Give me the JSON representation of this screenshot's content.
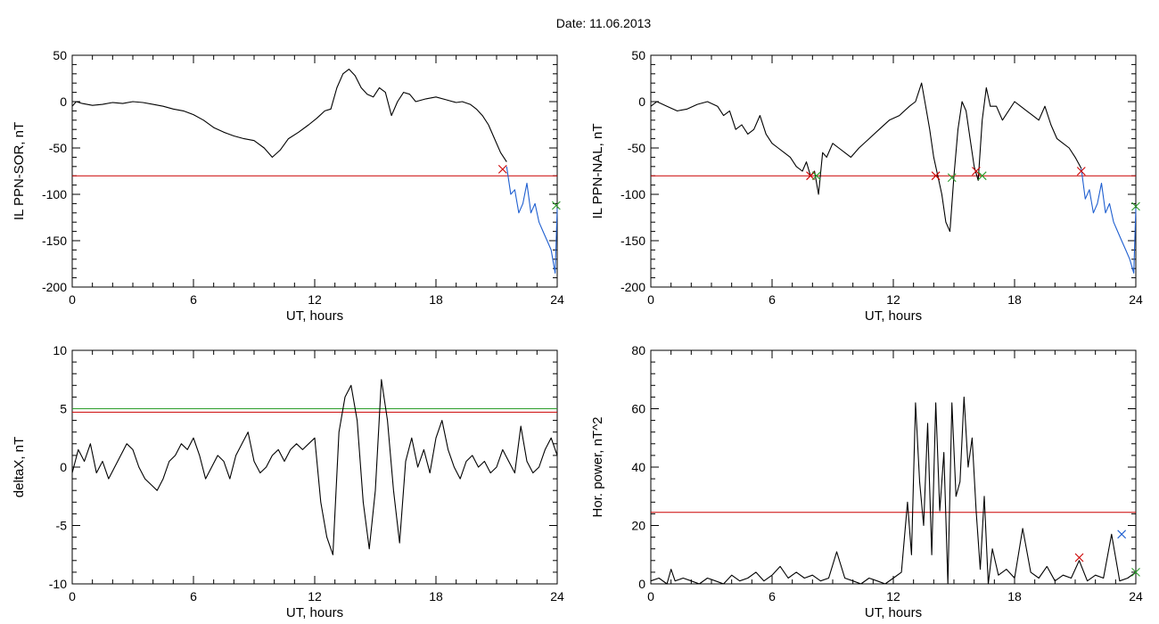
{
  "page": {
    "title": "Date:  11.06.2013"
  },
  "chart_data": [
    {
      "type": "line",
      "xlabel": "UT, hours",
      "ylabel": "IL PPN-SOR, nT",
      "xlim": [
        0,
        24
      ],
      "ylim": [
        -200,
        50
      ],
      "xticks": [
        0,
        6,
        12,
        18,
        24
      ],
      "yticks": [
        -200,
        -150,
        -100,
        -50,
        0,
        50
      ],
      "threshold": -80,
      "series": [
        {
          "color": "#000000",
          "x": [
            0,
            0.2,
            0.5,
            1,
            1.5,
            2,
            2.5,
            3,
            3.5,
            4,
            4.5,
            5,
            5.5,
            6,
            6.5,
            7,
            7.5,
            8,
            8.5,
            9,
            9.5,
            9.9,
            10.3,
            10.7,
            11.2,
            11.7,
            12.1,
            12.5,
            12.8,
            13.1,
            13.4,
            13.7,
            14,
            14.3,
            14.6,
            14.9,
            15.2,
            15.5,
            15.8,
            16.1,
            16.4,
            16.7,
            17,
            17.5,
            18,
            18.5,
            19,
            19.3,
            19.7,
            20,
            20.3,
            20.6,
            20.9,
            21.2,
            21.5
          ],
          "y": [
            -5,
            0,
            -2,
            -4,
            -3,
            -1,
            -2,
            0,
            -1,
            -3,
            -5,
            -8,
            -10,
            -14,
            -20,
            -28,
            -33,
            -37,
            -40,
            -42,
            -50,
            -60,
            -52,
            -40,
            -33,
            -25,
            -18,
            -10,
            -8,
            15,
            30,
            35,
            28,
            15,
            8,
            5,
            15,
            10,
            -15,
            0,
            10,
            8,
            0,
            3,
            5,
            2,
            -1,
            0,
            -3,
            -8,
            -15,
            -25,
            -40,
            -55,
            -65
          ]
        },
        {
          "color": "#1f5fd0",
          "x": [
            21.5,
            21.7,
            21.9,
            22.1,
            22.3,
            22.5,
            22.7,
            22.9,
            23.1,
            23.3,
            23.5,
            23.7,
            23.9,
            24
          ],
          "y": [
            -70,
            -100,
            -95,
            -120,
            -110,
            -88,
            -120,
            -110,
            -130,
            -140,
            -150,
            -160,
            -185,
            -115
          ]
        }
      ],
      "markers": [
        {
          "x": 21.3,
          "y": -73,
          "color": "#cc0000"
        },
        {
          "x": 23.95,
          "y": -112,
          "color": "#2a9d2a"
        }
      ]
    },
    {
      "type": "line",
      "xlabel": "UT, hours",
      "ylabel": "IL PPN-NAL, nT",
      "xlim": [
        0,
        24
      ],
      "ylim": [
        -200,
        50
      ],
      "xticks": [
        0,
        6,
        12,
        18,
        24
      ],
      "yticks": [
        -200,
        -150,
        -100,
        -50,
        0,
        50
      ],
      "threshold": -80,
      "series": [
        {
          "color": "#000000",
          "x": [
            0,
            0.3,
            0.8,
            1.3,
            1.8,
            2.3,
            2.8,
            3.3,
            3.6,
            3.9,
            4.2,
            4.5,
            4.8,
            5.1,
            5.4,
            5.7,
            6,
            6.3,
            6.6,
            6.9,
            7.2,
            7.5,
            7.7,
            7.9,
            8.1,
            8.3,
            8.5,
            8.7,
            9,
            9.3,
            9.6,
            9.9,
            10.3,
            10.8,
            11.3,
            11.8,
            12.3,
            12.8,
            13.1,
            13.4,
            13.6,
            13.8,
            14,
            14.2,
            14.4,
            14.6,
            14.8,
            15,
            15.2,
            15.4,
            15.6,
            15.8,
            16,
            16.2,
            16.4,
            16.6,
            16.8,
            17.1,
            17.4,
            17.7,
            18,
            18.3,
            18.6,
            18.9,
            19.2,
            19.5,
            19.8,
            20.1,
            20.4,
            20.7,
            21.0,
            21.3
          ],
          "y": [
            -5,
            0,
            -5,
            -10,
            -8,
            -3,
            0,
            -5,
            -15,
            -10,
            -30,
            -25,
            -35,
            -30,
            -15,
            -35,
            -45,
            -50,
            -55,
            -60,
            -70,
            -75,
            -65,
            -80,
            -75,
            -100,
            -55,
            -60,
            -45,
            -50,
            -55,
            -60,
            -50,
            -40,
            -30,
            -20,
            -15,
            -5,
            0,
            20,
            -5,
            -30,
            -60,
            -80,
            -100,
            -130,
            -140,
            -80,
            -30,
            0,
            -10,
            -40,
            -70,
            -85,
            -20,
            15,
            -5,
            -5,
            -20,
            -10,
            0,
            -5,
            -10,
            -15,
            -20,
            -5,
            -25,
            -40,
            -45,
            -50,
            -60,
            -72
          ]
        },
        {
          "color": "#1f5fd0",
          "x": [
            21.3,
            21.5,
            21.7,
            21.9,
            22.1,
            22.3,
            22.5,
            22.7,
            22.9,
            23.1,
            23.3,
            23.5,
            23.7,
            23.9,
            24
          ],
          "y": [
            -72,
            -105,
            -95,
            -120,
            -110,
            -88,
            -120,
            -110,
            -130,
            -140,
            -150,
            -160,
            -170,
            -185,
            -115
          ]
        }
      ],
      "markers": [
        {
          "x": 7.9,
          "y": -80,
          "color": "#cc0000"
        },
        {
          "x": 8.2,
          "y": -80,
          "color": "#2a9d2a"
        },
        {
          "x": 14.1,
          "y": -80,
          "color": "#cc0000"
        },
        {
          "x": 14.9,
          "y": -82,
          "color": "#2a9d2a"
        },
        {
          "x": 16.1,
          "y": -75,
          "color": "#cc0000"
        },
        {
          "x": 16.4,
          "y": -80,
          "color": "#2a9d2a"
        },
        {
          "x": 21.3,
          "y": -75,
          "color": "#cc0000"
        },
        {
          "x": 24,
          "y": -113,
          "color": "#2a9d2a"
        }
      ]
    },
    {
      "type": "line",
      "xlabel": "UT, hours",
      "ylabel": "deltaX, nT",
      "xlim": [
        0,
        24
      ],
      "ylim": [
        -10,
        10
      ],
      "xticks": [
        0,
        6,
        12,
        18,
        24
      ],
      "yticks": [
        -10,
        -5,
        0,
        5,
        10
      ],
      "threshold": 4.7,
      "threshold2": 5.0,
      "series": [
        {
          "color": "#000000",
          "x": [
            0,
            0.3,
            0.6,
            0.9,
            1.2,
            1.5,
            1.8,
            2.1,
            2.4,
            2.7,
            3.0,
            3.3,
            3.6,
            3.9,
            4.2,
            4.5,
            4.8,
            5.1,
            5.4,
            5.7,
            6.0,
            6.3,
            6.6,
            6.9,
            7.2,
            7.5,
            7.8,
            8.1,
            8.4,
            8.7,
            9.0,
            9.3,
            9.6,
            9.9,
            10.2,
            10.5,
            10.8,
            11.1,
            11.4,
            11.7,
            12.0,
            12.3,
            12.6,
            12.9,
            13.2,
            13.5,
            13.8,
            14.1,
            14.4,
            14.7,
            15.0,
            15.3,
            15.6,
            15.9,
            16.2,
            16.5,
            16.8,
            17.1,
            17.4,
            17.7,
            18.0,
            18.3,
            18.6,
            18.9,
            19.2,
            19.5,
            19.8,
            20.1,
            20.4,
            20.7,
            21.0,
            21.3,
            21.6,
            21.9,
            22.2,
            22.5,
            22.8,
            23.1,
            23.4,
            23.7,
            24.0
          ],
          "y": [
            -0.5,
            1.5,
            0.5,
            2.0,
            -0.5,
            0.5,
            -1.0,
            0.0,
            1.0,
            2.0,
            1.5,
            0.0,
            -1.0,
            -1.5,
            -2.0,
            -1.0,
            0.5,
            1.0,
            2.0,
            1.5,
            2.5,
            1.0,
            -1.0,
            0.0,
            1.0,
            0.5,
            -1.0,
            1.0,
            2.0,
            3.0,
            0.5,
            -0.5,
            0.0,
            1.0,
            1.5,
            0.5,
            1.5,
            2.0,
            1.5,
            2.0,
            2.5,
            -3.0,
            -6.0,
            -7.5,
            3.0,
            6.0,
            7.0,
            4.0,
            -3.0,
            -7.0,
            -2.0,
            7.5,
            4.0,
            -2.0,
            -6.5,
            0.5,
            2.5,
            0.0,
            1.5,
            -0.5,
            2.5,
            4.0,
            1.5,
            0.0,
            -1.0,
            0.5,
            1.0,
            0.0,
            0.5,
            -0.5,
            0.0,
            1.5,
            0.5,
            -0.5,
            3.5,
            0.5,
            -0.5,
            0.0,
            1.5,
            2.5,
            1.0
          ]
        }
      ],
      "line_colors": {
        "threshold": "#cc0000",
        "threshold2": "#2a9d2a"
      }
    },
    {
      "type": "line",
      "xlabel": "UT, hours",
      "ylabel": "Hor. power, nT^2",
      "xlim": [
        0,
        24
      ],
      "ylim": [
        0,
        80
      ],
      "xticks": [
        0,
        6,
        12,
        18,
        24
      ],
      "yticks": [
        0,
        20,
        40,
        60,
        80
      ],
      "threshold": 24.5,
      "series": [
        {
          "color": "#000000",
          "x": [
            0,
            0.4,
            0.8,
            1.0,
            1.2,
            1.6,
            2.0,
            2.4,
            2.8,
            3.2,
            3.6,
            4.0,
            4.4,
            4.8,
            5.2,
            5.6,
            6.0,
            6.4,
            6.8,
            7.2,
            7.6,
            8.0,
            8.4,
            8.8,
            9.2,
            9.6,
            10.0,
            10.4,
            10.8,
            11.2,
            11.6,
            12.0,
            12.4,
            12.7,
            12.9,
            13.1,
            13.3,
            13.5,
            13.7,
            13.9,
            14.1,
            14.3,
            14.5,
            14.7,
            14.9,
            15.1,
            15.3,
            15.5,
            15.7,
            15.9,
            16.1,
            16.3,
            16.5,
            16.7,
            16.9,
            17.2,
            17.6,
            18.0,
            18.4,
            18.8,
            19.2,
            19.6,
            20.0,
            20.4,
            20.8,
            21.2,
            21.6,
            22.0,
            22.4,
            22.8,
            23.2,
            23.6,
            24.0
          ],
          "y": [
            1,
            2,
            0,
            5,
            1,
            2,
            1,
            0,
            2,
            1,
            0,
            3,
            1,
            2,
            4,
            1,
            3,
            6,
            2,
            4,
            2,
            3,
            1,
            2,
            11,
            2,
            1,
            0,
            2,
            1,
            0,
            2,
            4,
            28,
            10,
            62,
            35,
            20,
            55,
            10,
            62,
            25,
            45,
            0,
            62,
            30,
            35,
            64,
            40,
            50,
            25,
            5,
            30,
            0,
            12,
            3,
            5,
            2,
            19,
            4,
            2,
            6,
            1,
            3,
            2,
            8,
            1,
            3,
            2,
            17,
            1,
            2,
            4
          ]
        }
      ],
      "markers": [
        {
          "x": 21.2,
          "y": 9,
          "color": "#cc0000"
        },
        {
          "x": 23.3,
          "y": 17,
          "color": "#1f5fd0"
        },
        {
          "x": 24,
          "y": 4,
          "color": "#2a9d2a"
        }
      ]
    }
  ]
}
